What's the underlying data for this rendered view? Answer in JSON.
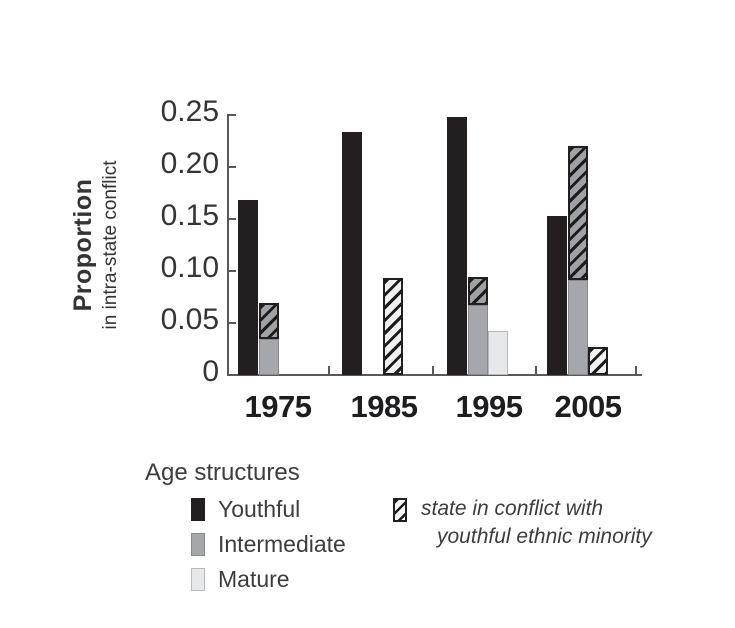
{
  "chart_data": {
    "type": "bar",
    "title": "",
    "ylabel": "Proportion",
    "ylabel_sub": "in intra-state conflict",
    "ylim": [
      0,
      0.25
    ],
    "yticks": [
      0,
      0.05,
      0.1,
      0.15,
      0.2,
      0.25
    ],
    "ytick_labels": [
      "0",
      "0.05",
      "0.10",
      "0.15",
      "0.20",
      "0.25"
    ],
    "categories": [
      "1975",
      "1985",
      "1995",
      "2005"
    ],
    "series": [
      {
        "name": "Youthful",
        "style": "youthful",
        "values": [
          0.168,
          0.234,
          0.248,
          0.153
        ]
      },
      {
        "name": "Intermediate",
        "style": "intermediate",
        "values": [
          0.035,
          0,
          0.067,
          0.091
        ],
        "hatched_top": [
          0.069,
          0,
          0.094,
          0.22
        ]
      },
      {
        "name": "Mature",
        "style": "mature",
        "values": [
          0,
          0,
          0.042,
          0
        ],
        "hatched_top": [
          0,
          0.093,
          0,
          0.027
        ]
      }
    ],
    "hatch_meaning": "state in conflict with youthful ethnic minority",
    "legend_position": "bottom",
    "grid": false
  },
  "legend": {
    "title": "Age structures",
    "items": [
      {
        "label": "Youthful",
        "style": "youthful"
      },
      {
        "label": "Intermediate",
        "style": "intermediate"
      },
      {
        "label": "Mature",
        "style": "mature"
      }
    ],
    "hatch_item": {
      "line1": "state in conflict with",
      "line2": "youthful ethnic minority",
      "style": "hatch"
    }
  },
  "colors": {
    "youthful": "#231f20",
    "intermediate": "#a5a7aa",
    "mature": "#e7e8e9",
    "hatch_stripe": "#1c1c1c",
    "hatch_light_bg": "#f2f2f3",
    "axis": "#58595b",
    "text": "#353537"
  }
}
